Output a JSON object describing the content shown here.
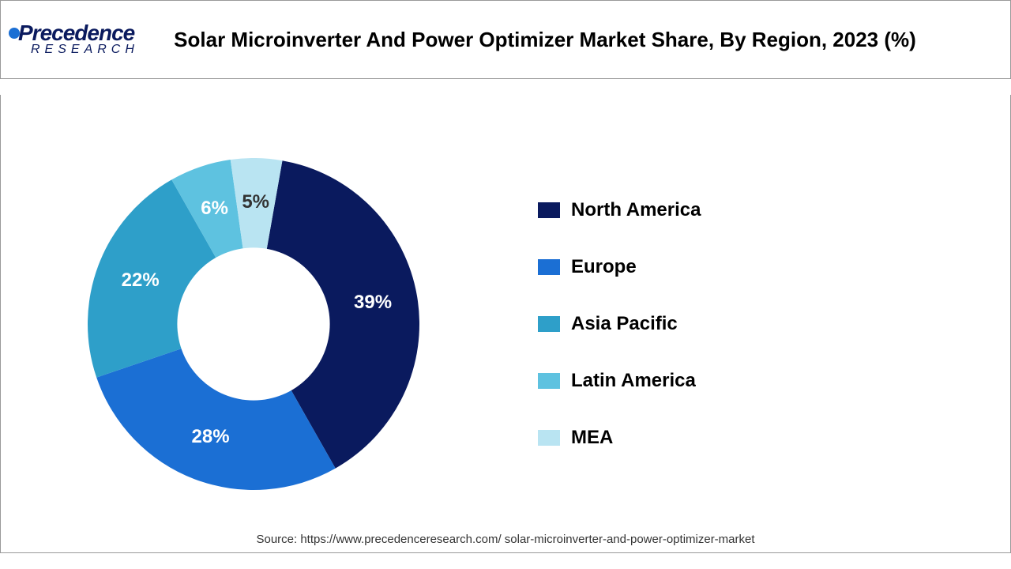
{
  "logo": {
    "top": "Precedence",
    "bottom": "RESEARCH"
  },
  "title": "Solar Microinverter And Power Optimizer Market Share, By Region, 2023 (%)",
  "chart": {
    "type": "donut",
    "inner_radius_ratio": 0.46,
    "background_color": "#ffffff",
    "border_color": "#999999",
    "start_angle_deg": 10,
    "slices": [
      {
        "label": "North America",
        "value": 39,
        "color": "#0a1a5e",
        "text": "39%"
      },
      {
        "label": "Europe",
        "value": 28,
        "color": "#1b6fd4",
        "text": "28%"
      },
      {
        "label": "Asia Pacific",
        "value": 22,
        "color": "#2e9fc9",
        "text": "22%"
      },
      {
        "label": "Latin America",
        "value": 6,
        "color": "#5ec2e0",
        "text": "6%"
      },
      {
        "label": "MEA",
        "value": 5,
        "color": "#b9e4f2",
        "text": "5%",
        "label_color": "#333333"
      }
    ],
    "label_fontsize": 24,
    "label_fontweight": 700
  },
  "legend": {
    "fontsize": 24,
    "fontweight": 700,
    "swatch_w": 28,
    "swatch_h": 20
  },
  "source": "Source: https://www.precedenceresearch.com/ solar-microinverter-and-power-optimizer-market"
}
